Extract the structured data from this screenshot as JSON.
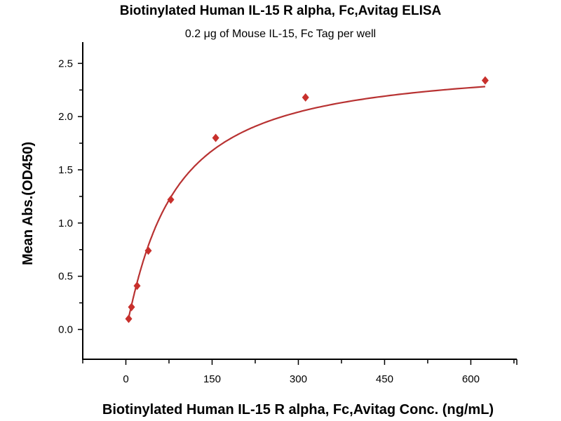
{
  "chart_data": {
    "type": "scatter",
    "title": "Biotinylated Human IL-15 R alpha, Fc,Avitag ELISA",
    "subtitle": "0.2 μg of Mouse IL-15, Fc Tag per well",
    "xlabel": "Biotinylated Human IL-15 R alpha, Fc,Avitag Conc. (ng/mL)",
    "ylabel": "Mean Abs.(OD450)",
    "xlim": [
      -75,
      680
    ],
    "ylim": [
      -0.28,
      2.7
    ],
    "xticks": [
      0,
      150,
      300,
      450,
      600
    ],
    "xtick_labels": [
      "0",
      "150",
      "300",
      "450",
      "600"
    ],
    "yticks": [
      0.0,
      0.5,
      1.0,
      1.5,
      2.0,
      2.5
    ],
    "ytick_labels": [
      "0.0",
      "0.5",
      "1.0",
      "1.5",
      "2.0",
      "2.5"
    ],
    "grid": false,
    "series": [
      {
        "name": "data",
        "marker": "diamond",
        "color": "#c8302c",
        "x": [
          4.9,
          9.8,
          19.5,
          39,
          78.1,
          156.25,
          312.5,
          625
        ],
        "y": [
          0.1,
          0.21,
          0.41,
          0.74,
          1.22,
          1.8,
          2.18,
          2.34
        ]
      }
    ],
    "fit": {
      "model": "4PL",
      "color": "#b83232",
      "bottom": 0,
      "top": 2.52,
      "ec50": 80,
      "hill": 1.1
    }
  }
}
